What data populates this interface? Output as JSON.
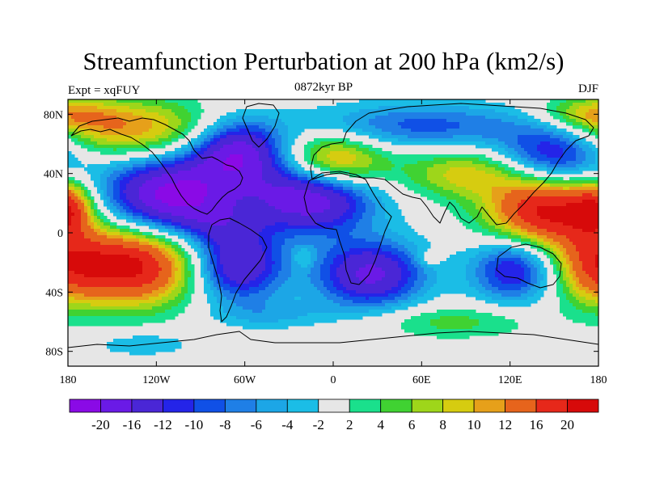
{
  "title": "Streamfunction Perturbation at 200 hPa (km2/s)",
  "subtitle_left": "Expt = xqFUY",
  "subtitle_center": "0872kyr BP",
  "subtitle_right": "DJF",
  "map": {
    "lon_range": [
      -180,
      180
    ],
    "lat_range": [
      -90,
      90
    ],
    "background_color": "#e6e6e6",
    "lon_ticks": [
      {
        "value": -180,
        "label": "180"
      },
      {
        "value": -120,
        "label": "120W"
      },
      {
        "value": -60,
        "label": "60W"
      },
      {
        "value": 0,
        "label": "0"
      },
      {
        "value": 60,
        "label": "60E"
      },
      {
        "value": 120,
        "label": "120E"
      },
      {
        "value": 180,
        "label": "180"
      }
    ],
    "lat_ticks": [
      {
        "value": 80,
        "label": "80N"
      },
      {
        "value": 40,
        "label": "40N"
      },
      {
        "value": 0,
        "label": "0"
      },
      {
        "value": -40,
        "label": "40S"
      },
      {
        "value": -80,
        "label": "80S"
      }
    ],
    "blobs": [
      {
        "lon": -110,
        "lat": 25,
        "amp": -22,
        "rlon": 32,
        "rlat": 18
      },
      {
        "lon": -15,
        "lat": 25,
        "amp": -21,
        "rlon": 30,
        "rlat": 17
      },
      {
        "lon": -65,
        "lat": -22,
        "amp": -17,
        "rlon": 22,
        "rlat": 17
      },
      {
        "lon": 25,
        "lat": -28,
        "amp": -17,
        "rlon": 26,
        "rlat": 16
      },
      {
        "lon": 122,
        "lat": -25,
        "amp": -13,
        "rlon": 20,
        "rlat": 15
      },
      {
        "lon": -65,
        "lat": 55,
        "amp": -18,
        "rlon": 22,
        "rlat": 15
      },
      {
        "lon": 150,
        "lat": 52,
        "amp": -14,
        "rlon": 26,
        "rlat": 15
      },
      {
        "lon": 60,
        "lat": 72,
        "amp": -9,
        "rlon": 60,
        "rlat": 11
      },
      {
        "lon": -80,
        "lat": 5,
        "amp": -5,
        "rlon": 20,
        "rlat": 10
      },
      {
        "lon": -140,
        "lat": -22,
        "amp": 22,
        "rlon": 34,
        "rlat": 19
      },
      {
        "lon": 145,
        "lat": 15,
        "amp": 21,
        "rlon": 28,
        "rlat": 17
      },
      {
        "lon": 0,
        "lat": 47,
        "amp": 16,
        "rlon": 25,
        "rlat": 14
      },
      {
        "lon": -140,
        "lat": 70,
        "amp": 12,
        "rlon": 45,
        "rlat": 14
      },
      {
        "lon": 175,
        "lat": -22,
        "amp": 9,
        "rlon": 18,
        "rlat": 18
      },
      {
        "lon": -180,
        "lat": 18,
        "amp": 12,
        "rlon": 12,
        "rlat": 12
      },
      {
        "lon": 90,
        "lat": 40,
        "amp": 9,
        "rlon": 30,
        "rlat": 12
      },
      {
        "lon": 80,
        "lat": -60,
        "amp": 5,
        "rlon": 40,
        "rlat": 8
      },
      {
        "lon": 65,
        "lat": -17,
        "amp": 4,
        "rlon": 6,
        "rlat": 4
      },
      {
        "lon": -20,
        "lat": -17,
        "amp": 4,
        "rlon": 5,
        "rlat": 5
      },
      {
        "lon": -40,
        "lat": -55,
        "amp": -4,
        "rlon": 28,
        "rlat": 7
      },
      {
        "lon": -130,
        "lat": -75,
        "amp": -4,
        "rlon": 25,
        "rlat": 6
      },
      {
        "lon": 175,
        "lat": 80,
        "amp": 8,
        "rlon": 25,
        "rlat": 8
      }
    ]
  },
  "colorbar": {
    "levels": [
      "-20",
      "-16",
      "-12",
      "-10",
      "-8",
      "-6",
      "-4",
      "-2",
      "2",
      "4",
      "6",
      "8",
      "10",
      "12",
      "16",
      "20"
    ],
    "level_values": [
      -20,
      -16,
      -12,
      -10,
      -8,
      -6,
      -4,
      -2,
      2,
      4,
      6,
      8,
      10,
      12,
      16,
      20
    ],
    "colors": [
      "#8a0ae6",
      "#6a1ae6",
      "#4a26d6",
      "#2424e8",
      "#1050e6",
      "#1f7fe6",
      "#1ca6e6",
      "#1bbde6",
      "#e6e6e6",
      "#1ae08c",
      "#40d232",
      "#9ed61a",
      "#d6cc10",
      "#e6a01a",
      "#e6641c",
      "#e6281a",
      "#d70a0a"
    ]
  }
}
